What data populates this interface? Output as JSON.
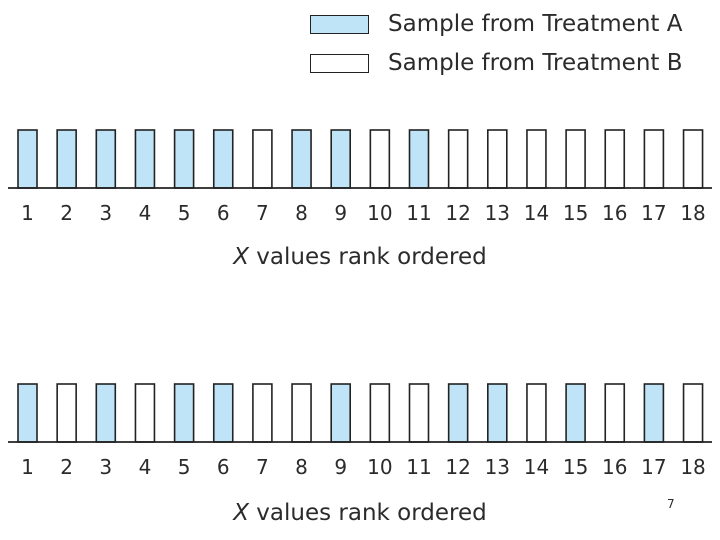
{
  "legend": {
    "treatment_a": {
      "label": "Sample from Treatment A",
      "color": "#bfe3f7"
    },
    "treatment_b": {
      "label": "Sample from Treatment B",
      "color": "#ffffff"
    }
  },
  "panels": [
    {
      "ranks": [
        "1",
        "2",
        "3",
        "4",
        "5",
        "6",
        "7",
        "8",
        "9",
        "10",
        "11",
        "12",
        "13",
        "14",
        "15",
        "16",
        "17",
        "18"
      ],
      "groups": [
        "A",
        "A",
        "A",
        "A",
        "A",
        "A",
        "B",
        "A",
        "A",
        "B",
        "A",
        "B",
        "B",
        "B",
        "B",
        "B",
        "B",
        "B"
      ],
      "axis_title_var": "X",
      "axis_title_rest": " values rank ordered"
    },
    {
      "ranks": [
        "1",
        "2",
        "3",
        "4",
        "5",
        "6",
        "7",
        "8",
        "9",
        "10",
        "11",
        "12",
        "13",
        "14",
        "15",
        "16",
        "17",
        "18"
      ],
      "groups": [
        "A",
        "B",
        "A",
        "B",
        "A",
        "A",
        "B",
        "B",
        "A",
        "B",
        "B",
        "A",
        "A",
        "B",
        "A",
        "B",
        "A",
        "B"
      ],
      "axis_title_var": "X",
      "axis_title_rest": " values rank ordered"
    }
  ],
  "page_number": "7"
}
